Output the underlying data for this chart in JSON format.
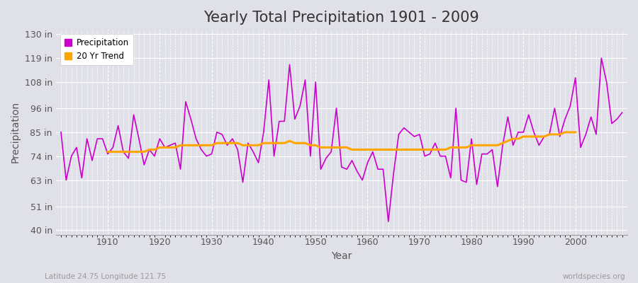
{
  "title": "Yearly Total Precipitation 1901 - 2009",
  "xlabel": "Year",
  "ylabel": "Precipitation",
  "years": [
    1901,
    1902,
    1903,
    1904,
    1905,
    1906,
    1907,
    1908,
    1909,
    1910,
    1911,
    1912,
    1913,
    1914,
    1915,
    1916,
    1917,
    1918,
    1919,
    1920,
    1921,
    1922,
    1923,
    1924,
    1925,
    1926,
    1927,
    1928,
    1929,
    1930,
    1931,
    1932,
    1933,
    1934,
    1935,
    1936,
    1937,
    1938,
    1939,
    1940,
    1941,
    1942,
    1943,
    1944,
    1945,
    1946,
    1947,
    1948,
    1949,
    1950,
    1951,
    1952,
    1953,
    1954,
    1955,
    1956,
    1957,
    1958,
    1959,
    1960,
    1961,
    1962,
    1963,
    1964,
    1965,
    1966,
    1967,
    1968,
    1969,
    1970,
    1971,
    1972,
    1973,
    1974,
    1975,
    1976,
    1977,
    1978,
    1979,
    1980,
    1981,
    1982,
    1983,
    1984,
    1985,
    1986,
    1987,
    1988,
    1989,
    1990,
    1991,
    1992,
    1993,
    1994,
    1995,
    1996,
    1997,
    1998,
    1999,
    2000,
    2001,
    2002,
    2003,
    2004,
    2005,
    2006,
    2007,
    2008,
    2009
  ],
  "precipitation": [
    85,
    63,
    74,
    78,
    64,
    82,
    72,
    82,
    82,
    75,
    78,
    88,
    76,
    73,
    93,
    82,
    70,
    77,
    74,
    82,
    78,
    79,
    80,
    68,
    99,
    91,
    82,
    77,
    74,
    75,
    85,
    84,
    79,
    82,
    77,
    62,
    80,
    76,
    71,
    85,
    109,
    74,
    90,
    90,
    116,
    91,
    97,
    109,
    74,
    108,
    68,
    73,
    76,
    96,
    69,
    68,
    72,
    67,
    63,
    71,
    76,
    68,
    68,
    44,
    66,
    84,
    87,
    85,
    83,
    84,
    74,
    75,
    80,
    74,
    74,
    64,
    96,
    63,
    62,
    82,
    61,
    75,
    75,
    77,
    60,
    79,
    92,
    79,
    85,
    85,
    93,
    85,
    79,
    83,
    84,
    96,
    83,
    91,
    97,
    110,
    78,
    84,
    92,
    84,
    119,
    108,
    89,
    91,
    94
  ],
  "trend": [
    null,
    null,
    null,
    null,
    null,
    null,
    null,
    null,
    null,
    76,
    76,
    76,
    76,
    76,
    76,
    76,
    76,
    77,
    77,
    78,
    78,
    78,
    78,
    79,
    79,
    79,
    79,
    79,
    79,
    79,
    80,
    80,
    80,
    80,
    80,
    79,
    79,
    79,
    79,
    80,
    80,
    80,
    80,
    80,
    81,
    80,
    80,
    80,
    79,
    79,
    78,
    78,
    78,
    78,
    78,
    78,
    77,
    77,
    77,
    77,
    77,
    77,
    77,
    77,
    77,
    77,
    77,
    77,
    77,
    77,
    77,
    77,
    77,
    77,
    77,
    78,
    78,
    78,
    78,
    79,
    79,
    79,
    79,
    79,
    79,
    80,
    81,
    82,
    82,
    83,
    83,
    83,
    83,
    83,
    84,
    84,
    84,
    85,
    85,
    85,
    null,
    null,
    null,
    null,
    null,
    null,
    null,
    null,
    null
  ],
  "precip_color": "#CC00CC",
  "trend_color": "#FFA500",
  "bg_color": "#E0E0E8",
  "plot_bg_color": "#E0E0E8",
  "grid_color": "#FFFFFF",
  "yticks": [
    40,
    51,
    63,
    74,
    85,
    96,
    108,
    119,
    130
  ],
  "ylim": [
    38,
    132
  ],
  "xlim": [
    1900,
    2010
  ],
  "subtitle_left": "Latitude 24.75 Longitude 121.75",
  "subtitle_right": "worldspecies.org",
  "title_fontsize": 15,
  "label_fontsize": 10,
  "tick_fontsize": 9
}
